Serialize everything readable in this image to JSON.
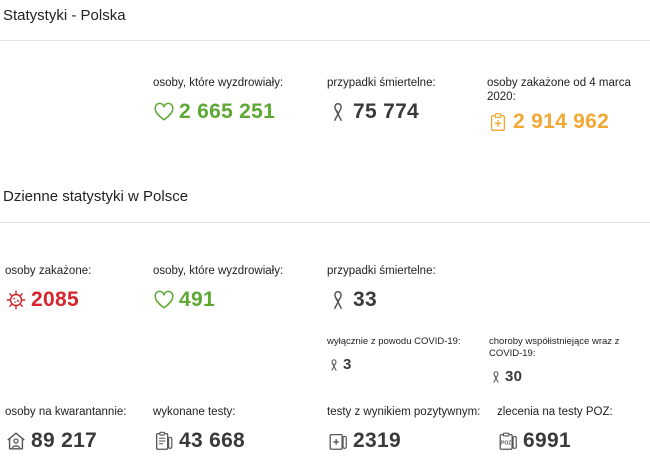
{
  "section_poland": {
    "title": "Statystyki - Polska",
    "recovered": {
      "label": "osoby, które wyzdrowiały:",
      "value": "2 665 251",
      "icon": "heart-icon"
    },
    "deaths": {
      "label": "przypadki śmiertelne:",
      "value": "75 774",
      "icon": "ribbon-icon"
    },
    "infected_total": {
      "label": "osoby zakażone od 4 marca 2020:",
      "value": "2 914 962",
      "icon": "clipboard-medical-icon"
    }
  },
  "section_daily": {
    "title": "Dzienne statystyki w Polsce",
    "infected": {
      "label": "osoby zakażone:",
      "value": "2085",
      "icon": "virus-icon"
    },
    "recovered": {
      "label": "osoby, które wyzdrowiały:",
      "value": "491",
      "icon": "heart-icon"
    },
    "deaths": {
      "label": "przypadki śmiertelne:",
      "value": "33",
      "icon": "ribbon-icon"
    },
    "deaths_covid_only": {
      "label": "wyłącznie z powodu COVID-19:",
      "value": "3",
      "icon": "ribbon-icon"
    },
    "deaths_comorbid": {
      "label": "choroby współistniejące wraz z COVID-19:",
      "value": "30",
      "icon": "ribbon-icon"
    },
    "quarantine": {
      "label": "osoby na kwarantannie:",
      "value": "89 217",
      "icon": "house-person-icon"
    },
    "tests": {
      "label": "wykonane testy:",
      "value": "43 668",
      "icon": "test-clipboard-icon"
    },
    "positive_tests": {
      "label": "testy z wynikiem pozytywnym:",
      "value": "2319",
      "icon": "positive-test-icon"
    },
    "poz_orders": {
      "label": "zlecenia na testy POZ:",
      "value": "6991",
      "icon": "poz-test-icon"
    }
  },
  "colors": {
    "green": "#5da833",
    "dark": "#3a3a3a",
    "orange": "#f3a833",
    "red": "#d4262c",
    "divider": "#e2e2e2"
  }
}
